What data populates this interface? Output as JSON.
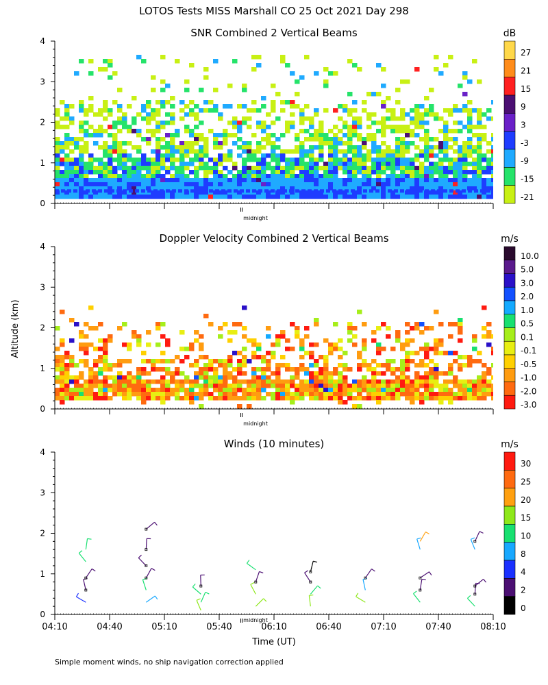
{
  "page": {
    "title": "LOTOS Tests MISS Marshall CO  25 Oct 2021 Day 298",
    "y_axis_label": "Altitude (km)",
    "x_axis_label": "Time (UT)",
    "footnote": "Simple moment winds, no ship navigation correction applied",
    "midnight_label": "midnight"
  },
  "chart_data": [
    {
      "type": "heatmap",
      "title": "SNR Combined 2 Vertical Beams",
      "xlabel": "",
      "ylabel": "Altitude (km)",
      "ylim": [
        0,
        4
      ],
      "yticks": [
        "0",
        "1",
        "2",
        "3",
        "4"
      ],
      "xlim_hours": [
        4.1667,
        8.1667
      ],
      "x_ticklabels_shown": false,
      "colorbar": {
        "unit": "dB",
        "labels": [
          "27",
          "21",
          "15",
          "9",
          "3",
          "-3",
          "-9",
          "-15",
          "-21"
        ],
        "colors": [
          "#ffd84a",
          "#ff8c1a",
          "#ff2020",
          "#4b0f72",
          "#6a20c8",
          "#1e3cff",
          "#1faaff",
          "#25e36a",
          "#c8f014"
        ]
      },
      "description_values": {
        "dominant_layer_km": [
          0.2,
          0.6
        ],
        "max_echo_km": 3.5
      }
    },
    {
      "type": "heatmap",
      "title": "Doppler Velocity Combined 2 Vertical Beams",
      "xlabel": "",
      "ylabel": "Altitude (km)",
      "ylim": [
        0,
        4
      ],
      "yticks": [
        "0",
        "1",
        "2",
        "3",
        "4"
      ],
      "xlim_hours": [
        4.1667,
        8.1667
      ],
      "x_ticklabels_shown": false,
      "colorbar": {
        "unit": "m/s",
        "labels": [
          "10.0",
          "5.0",
          "3.0",
          "2.0",
          "1.0",
          "0.5",
          "0.1",
          "-0.1",
          "-0.5",
          "-1.0",
          "-2.0",
          "-3.0"
        ],
        "colors": [
          "#2a0a2e",
          "#5a1a8c",
          "#2a10c8",
          "#1250ff",
          "#14aaff",
          "#18e070",
          "#a6ee1a",
          "#e8ee12",
          "#ffd000",
          "#ff9c10",
          "#ff6a10",
          "#ff1a10"
        ]
      }
    },
    {
      "type": "line",
      "title": "Winds (10 minutes)",
      "xlabel": "Time (UT)",
      "ylabel": "Altitude (km)",
      "ylim": [
        0,
        4
      ],
      "yticks": [
        "0",
        "1",
        "2",
        "3",
        "4"
      ],
      "xlim_hours": [
        4.1667,
        8.1667
      ],
      "xticks": [
        "04:10",
        "04:40",
        "05:10",
        "05:40",
        "06:10",
        "06:40",
        "07:10",
        "07:40",
        "08:10"
      ],
      "colorbar": {
        "unit": "m/s",
        "labels": [
          "30",
          "25",
          "20",
          "15",
          "10",
          "8",
          "4",
          "2",
          "0"
        ],
        "colors": [
          "#ff1a10",
          "#ff6a10",
          "#ffa010",
          "#8ee81a",
          "#18e070",
          "#18a8ff",
          "#1a30ff",
          "#4b0f72",
          "#000000"
        ]
      },
      "barb_columns_hours": [
        4.45,
        5.0,
        5.5,
        6.0,
        6.5,
        7.0,
        7.5,
        8.0
      ],
      "wind_samples": [
        {
          "t": 4.45,
          "alt": 0.3,
          "spd": 6
        },
        {
          "t": 4.45,
          "alt": 0.6,
          "spd": 3
        },
        {
          "t": 4.45,
          "alt": 0.9,
          "spd": 2
        },
        {
          "t": 4.45,
          "alt": 1.3,
          "spd": 12
        },
        {
          "t": 4.45,
          "alt": 1.6,
          "spd": 12
        },
        {
          "t": 5.0,
          "alt": 0.3,
          "spd": 8
        },
        {
          "t": 5.0,
          "alt": 0.6,
          "spd": 12
        },
        {
          "t": 5.0,
          "alt": 0.9,
          "spd": 2
        },
        {
          "t": 5.0,
          "alt": 1.2,
          "spd": 3
        },
        {
          "t": 5.0,
          "alt": 1.6,
          "spd": 2
        },
        {
          "t": 5.0,
          "alt": 2.1,
          "spd": 3
        },
        {
          "t": 5.5,
          "alt": 0.1,
          "spd": 16
        },
        {
          "t": 5.5,
          "alt": 0.3,
          "spd": 14
        },
        {
          "t": 5.5,
          "alt": 0.5,
          "spd": 12
        },
        {
          "t": 5.5,
          "alt": 0.7,
          "spd": 3
        },
        {
          "t": 6.0,
          "alt": 0.2,
          "spd": 16
        },
        {
          "t": 6.0,
          "alt": 0.5,
          "spd": 17
        },
        {
          "t": 6.0,
          "alt": 0.8,
          "spd": 2
        },
        {
          "t": 6.0,
          "alt": 1.1,
          "spd": 12
        },
        {
          "t": 6.5,
          "alt": 0.2,
          "spd": 17
        },
        {
          "t": 6.5,
          "alt": 0.5,
          "spd": 14
        },
        {
          "t": 6.5,
          "alt": 0.8,
          "spd": 3
        },
        {
          "t": 6.5,
          "alt": 1.05,
          "spd": 1
        },
        {
          "t": 7.0,
          "alt": 0.3,
          "spd": 17
        },
        {
          "t": 7.0,
          "alt": 0.6,
          "spd": 8
        },
        {
          "t": 7.0,
          "alt": 0.9,
          "spd": 3
        },
        {
          "t": 7.5,
          "alt": 0.3,
          "spd": 10
        },
        {
          "t": 7.5,
          "alt": 0.6,
          "spd": 2
        },
        {
          "t": 7.5,
          "alt": 0.9,
          "spd": 3
        },
        {
          "t": 7.5,
          "alt": 1.6,
          "spd": 8
        },
        {
          "t": 7.5,
          "alt": 1.8,
          "spd": 21
        },
        {
          "t": 8.0,
          "alt": 0.2,
          "spd": 14
        },
        {
          "t": 8.0,
          "alt": 0.5,
          "spd": 3
        },
        {
          "t": 8.0,
          "alt": 0.7,
          "spd": 2
        },
        {
          "t": 8.0,
          "alt": 1.6,
          "spd": 8
        },
        {
          "t": 8.0,
          "alt": 1.8,
          "spd": 3
        }
      ]
    }
  ]
}
